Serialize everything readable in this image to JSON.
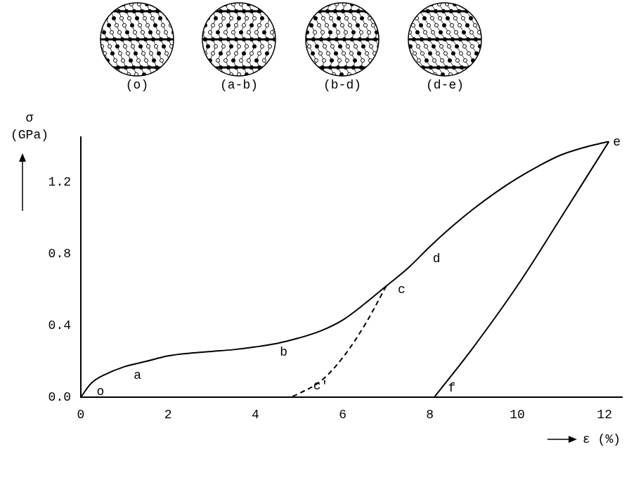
{
  "chart_data": {
    "type": "line",
    "xlabel": "ε (%)",
    "ylabel": "σ (GPa)",
    "xlim": [
      0,
      12.4
    ],
    "xticks": [
      0,
      2,
      4,
      6,
      8,
      10,
      12
    ],
    "ylim": [
      0,
      1.45
    ],
    "yticks": [
      {
        "value": 0,
        "label": "0.0"
      },
      0.4,
      0.8,
      1.2
    ],
    "grid": false,
    "series": [
      {
        "x": [
          0,
          0.25,
          0.5,
          1,
          1.5,
          2,
          2.5,
          3,
          3.5,
          4,
          4.5,
          5,
          5.5,
          6,
          6.5,
          7,
          7.5,
          8,
          8.5,
          9,
          9.5,
          10,
          10.5,
          11,
          11.5,
          12,
          12.1
        ],
        "values": [
          0,
          0.08,
          0.12,
          0.17,
          0.2,
          0.23,
          0.245,
          0.255,
          0.265,
          0.28,
          0.3,
          0.33,
          0.37,
          0.43,
          0.52,
          0.62,
          0.72,
          0.84,
          0.95,
          1.05,
          1.14,
          1.22,
          1.29,
          1.35,
          1.39,
          1.42,
          1.425
        ],
        "line_style": "solid",
        "color": "#000000"
      },
      {
        "x": [
          7,
          6.5,
          6,
          5.5,
          5,
          4.8
        ],
        "values": [
          0.62,
          0.4,
          0.22,
          0.09,
          0.02,
          0
        ],
        "line_style": "dashed",
        "color": "#000000"
      },
      {
        "x": [
          12.1,
          11,
          10,
          9,
          8.1
        ],
        "values": [
          1.425,
          1.0,
          0.62,
          0.28,
          0
        ],
        "line_style": "solid",
        "color": "#000000"
      }
    ],
    "annotations": [
      {
        "text": "o",
        "x": 0.45,
        "y": 0.03
      },
      {
        "text": "a",
        "x": 1.3,
        "y": 0.12
      },
      {
        "text": "b",
        "x": 4.65,
        "y": 0.25
      },
      {
        "text": "c",
        "x": 7.35,
        "y": 0.6
      },
      {
        "text": "d",
        "x": 8.15,
        "y": 0.77
      },
      {
        "text": "e",
        "x": 12.28,
        "y": 1.42
      },
      {
        "text": "c'",
        "x": 5.5,
        "y": 0.06
      },
      {
        "text": "f",
        "x": 8.5,
        "y": 0.05
      }
    ],
    "insets": [
      "(o)",
      "(a-b)",
      "(b-d)",
      "(d-e)"
    ]
  }
}
